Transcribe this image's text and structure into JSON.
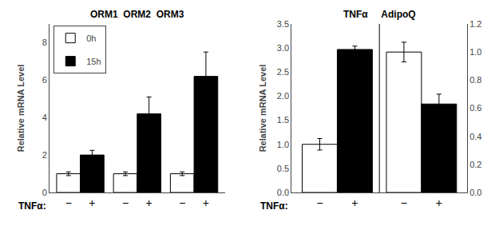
{
  "chart_data": [
    {
      "type": "bar",
      "title": "ORM1  ORM2  ORM3",
      "ylabel": "Relative mRNA Level",
      "xlabel": "TNFα:",
      "categories": [
        "−",
        "+",
        "−",
        "+",
        "−",
        "+"
      ],
      "series": [
        {
          "name": "0h",
          "color": "white",
          "values": [
            1.0,
            null,
            1.0,
            null,
            1.0,
            null
          ],
          "errors": [
            0.1,
            null,
            0.1,
            null,
            0.1,
            null
          ]
        },
        {
          "name": "15h",
          "color": "black",
          "values": [
            null,
            2.0,
            null,
            4.2,
            null,
            6.2
          ],
          "errors": [
            null,
            0.25,
            null,
            0.9,
            null,
            1.3
          ]
        }
      ],
      "ylim": [
        0,
        9
      ],
      "yticks": [
        0,
        2,
        4,
        6,
        8
      ],
      "grid": false,
      "legend": "upper left"
    },
    {
      "type": "bar",
      "title": "TNFα     AdipoQ",
      "ylabel": "Relative mRNA Level",
      "xlabel": "TNFα:",
      "categories": [
        "−",
        "+",
        "−",
        "+"
      ],
      "series": [
        {
          "name": "0h",
          "color": "white",
          "values": [
            1.0,
            null,
            null,
            null
          ],
          "errors": [
            0.12,
            null,
            null,
            null
          ]
        },
        {
          "name": "15h",
          "color": "black",
          "values": [
            null,
            2.97,
            null,
            null
          ],
          "errors": [
            null,
            0.07,
            null,
            null
          ]
        },
        {
          "name": "0h",
          "color": "white",
          "axis": "y2",
          "values": [
            null,
            null,
            1.0,
            null
          ],
          "errors": [
            null,
            null,
            0.07,
            null
          ]
        },
        {
          "name": "15h",
          "color": "black",
          "axis": "y2",
          "values": [
            null,
            null,
            null,
            0.63
          ],
          "errors": [
            null,
            null,
            null,
            0.07
          ]
        }
      ],
      "ylim": [
        0,
        3.5
      ],
      "yticks": [
        {
          "value": 0.0,
          "label": "0.0"
        },
        0.5,
        {
          "value": 1.0,
          "label": "1.0"
        },
        1.5,
        {
          "value": 2.0,
          "label": "2.0"
        },
        2.5,
        {
          "value": 3.0,
          "label": "3.0"
        },
        3.5
      ],
      "y2lim": [
        0,
        1.2
      ],
      "y2ticks": [
        {
          "value": 0.0,
          "label": "0.0"
        },
        0.2,
        0.4,
        0.6,
        0.8,
        {
          "value": 1.0,
          "label": "1.0"
        },
        1.2
      ],
      "grid": false
    }
  ]
}
